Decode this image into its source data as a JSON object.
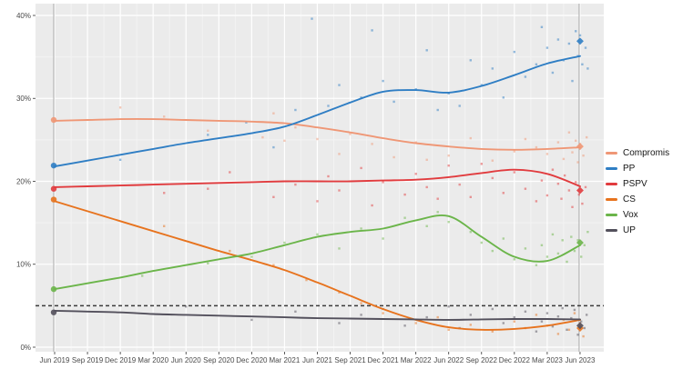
{
  "figure": {
    "background": "#ffffff",
    "plot_background": "#ebebeb",
    "grid_major_color": "#ffffff",
    "grid_minor_color": "#f3f3f3",
    "axis_text_color": "#4a4a4a",
    "election_line_color": "#a8a8a8",
    "threshold_color": "#3b3b3b"
  },
  "chart_data": {
    "type": "line",
    "title": "",
    "x_axis": {
      "tick_labels": [
        "Jun 2019",
        "Sep 2019",
        "Dec 2019",
        "Mar 2020",
        "Jun 2020",
        "Sep 2020",
        "Dec 2020",
        "Mar 2021",
        "Jun 2021",
        "Sep 2021",
        "Dec 2021",
        "Mar 2022",
        "Jun 2022",
        "Sep 2022",
        "Dec 2022",
        "Mar 2023",
        "Jun 2023"
      ],
      "months_span": 48
    },
    "y_axis": {
      "tick_labels": [
        "0%",
        "10%",
        "20%",
        "30%",
        "40%"
      ],
      "tick_values": [
        0,
        10,
        20,
        30,
        40
      ],
      "min": 0,
      "max": 40,
      "unit": "%"
    },
    "threshold": {
      "value": 5,
      "style": "dashed"
    },
    "election_lines_months": [
      0,
      48
    ],
    "legend_position": "right",
    "series": [
      {
        "name": "Compromis",
        "color": "#ef9776",
        "trend_quarterly": [
          27.3,
          27.4,
          27.5,
          27.5,
          27.4,
          27.3,
          27.2,
          27.0,
          26.5,
          25.9,
          25.2,
          24.6,
          24.2,
          23.9,
          23.8,
          23.9,
          24.1
        ],
        "result_2019": 27.4,
        "result_2023": 24.2,
        "polls": [
          [
            6,
            28.9
          ],
          [
            10,
            27.8
          ],
          [
            14,
            26.1
          ],
          [
            19,
            25.3
          ],
          [
            20,
            28.2
          ],
          [
            21,
            24.9
          ],
          [
            22,
            26.5
          ],
          [
            24,
            25.1
          ],
          [
            26,
            23.3
          ],
          [
            27,
            25.7
          ],
          [
            29,
            24.5
          ],
          [
            31,
            22.9
          ],
          [
            33,
            24.7
          ],
          [
            34,
            22.6
          ],
          [
            36,
            23.1
          ],
          [
            38,
            25.2
          ],
          [
            40,
            22.5
          ],
          [
            42,
            23.6
          ],
          [
            43,
            25.1
          ],
          [
            44,
            24.1
          ],
          [
            45,
            23.3
          ],
          [
            46,
            24.7
          ],
          [
            46.5,
            22.7
          ],
          [
            47,
            25.9
          ],
          [
            47.3,
            23.5
          ],
          [
            47.6,
            24.9
          ],
          [
            47.8,
            22.3
          ],
          [
            48,
            24.5
          ],
          [
            48.3,
            23.1
          ],
          [
            48.6,
            25.3
          ]
        ]
      },
      {
        "name": "PP",
        "color": "#2f7ec4",
        "trend_quarterly": [
          21.8,
          22.5,
          23.2,
          23.9,
          24.6,
          25.2,
          25.8,
          26.6,
          28.0,
          29.5,
          30.8,
          31.0,
          30.7,
          31.5,
          32.8,
          34.2,
          35.1
        ],
        "result_2019": 21.9,
        "result_2023": 36.9,
        "polls": [
          [
            6,
            22.6
          ],
          [
            14,
            25.6
          ],
          [
            17.5,
            27.1
          ],
          [
            20,
            24.1
          ],
          [
            22,
            28.6
          ],
          [
            23.5,
            39.6
          ],
          [
            25,
            29.1
          ],
          [
            26,
            31.6
          ],
          [
            28,
            30.1
          ],
          [
            29,
            38.2
          ],
          [
            30,
            32.1
          ],
          [
            31,
            29.6
          ],
          [
            33,
            31.1
          ],
          [
            34,
            35.8
          ],
          [
            35,
            28.6
          ],
          [
            36,
            30.6
          ],
          [
            37,
            29.1
          ],
          [
            38,
            34.6
          ],
          [
            39,
            31.6
          ],
          [
            40,
            33.6
          ],
          [
            41,
            30.1
          ],
          [
            42,
            35.6
          ],
          [
            43,
            32.6
          ],
          [
            44,
            34.1
          ],
          [
            44.5,
            38.6
          ],
          [
            45,
            36.1
          ],
          [
            45.5,
            33.1
          ],
          [
            46,
            37.1
          ],
          [
            46.5,
            34.6
          ],
          [
            47,
            36.6
          ],
          [
            47.3,
            32.1
          ],
          [
            47.6,
            38.1
          ],
          [
            47.8,
            35.1
          ],
          [
            48,
            37.6
          ],
          [
            48.2,
            34.1
          ],
          [
            48.5,
            36.1
          ],
          [
            48.7,
            33.6
          ]
        ]
      },
      {
        "name": "PSPV",
        "color": "#e13b3e",
        "trend_quarterly": [
          19.3,
          19.4,
          19.5,
          19.6,
          19.7,
          19.8,
          19.9,
          20.0,
          20.0,
          20.0,
          20.1,
          20.2,
          20.5,
          21.0,
          21.4,
          20.9,
          19.4
        ],
        "result_2019": 19.1,
        "result_2023": 18.9,
        "polls": [
          [
            10,
            18.6
          ],
          [
            14,
            19.1
          ],
          [
            16,
            21.1
          ],
          [
            20,
            18.1
          ],
          [
            22,
            19.6
          ],
          [
            24,
            17.6
          ],
          [
            25,
            20.6
          ],
          [
            26,
            18.9
          ],
          [
            28,
            21.6
          ],
          [
            29,
            17.1
          ],
          [
            30,
            19.9
          ],
          [
            32,
            18.4
          ],
          [
            33,
            20.9
          ],
          [
            34,
            19.3
          ],
          [
            35,
            17.9
          ],
          [
            36,
            21.9
          ],
          [
            37,
            19.6
          ],
          [
            38,
            18.1
          ],
          [
            39,
            22.1
          ],
          [
            40,
            20.4
          ],
          [
            41,
            18.6
          ],
          [
            42,
            21.1
          ],
          [
            43,
            19.1
          ],
          [
            44,
            17.6
          ],
          [
            44.5,
            20.1
          ],
          [
            45,
            18.3
          ],
          [
            45.5,
            21.4
          ],
          [
            46,
            19.7
          ],
          [
            46.3,
            17.9
          ],
          [
            46.6,
            20.7
          ],
          [
            47,
            18.9
          ],
          [
            47.3,
            16.9
          ],
          [
            47.6,
            19.9
          ],
          [
            47.9,
            18.4
          ],
          [
            48.2,
            17.3
          ],
          [
            48.5,
            19.3
          ]
        ]
      },
      {
        "name": "CS",
        "color": "#e7731e",
        "trend_quarterly": [
          17.6,
          16.4,
          15.2,
          14.0,
          12.8,
          11.6,
          10.5,
          9.3,
          7.8,
          6.2,
          4.6,
          3.3,
          2.4,
          2.1,
          2.2,
          2.6,
          3.3
        ],
        "result_2019": 17.8,
        "result_2023": 2.3,
        "polls": [
          [
            10,
            14.6
          ],
          [
            16,
            11.6
          ],
          [
            20,
            9.9
          ],
          [
            23,
            8.1
          ],
          [
            26,
            6.6
          ],
          [
            28,
            5.3
          ],
          [
            30,
            4.1
          ],
          [
            33,
            2.9
          ],
          [
            35,
            3.6
          ],
          [
            36,
            2.1
          ],
          [
            38,
            2.7
          ],
          [
            40,
            1.9
          ],
          [
            42,
            3.1
          ],
          [
            43,
            2.3
          ],
          [
            44,
            3.9
          ],
          [
            45,
            2.6
          ],
          [
            46,
            1.6
          ],
          [
            46.5,
            3.3
          ],
          [
            47,
            2.1
          ],
          [
            47.5,
            4.1
          ],
          [
            48,
            2.9
          ],
          [
            48.3,
            1.3
          ]
        ]
      },
      {
        "name": "Vox",
        "color": "#6bb54a",
        "trend_quarterly": [
          7.0,
          7.7,
          8.4,
          9.2,
          9.9,
          10.6,
          11.3,
          12.3,
          13.3,
          13.9,
          14.3,
          15.3,
          15.8,
          13.3,
          10.9,
          10.4,
          12.3
        ],
        "result_2019": 7.0,
        "result_2023": 12.6,
        "polls": [
          [
            8,
            8.6
          ],
          [
            14,
            10.1
          ],
          [
            18,
            10.9
          ],
          [
            21,
            12.6
          ],
          [
            24,
            13.6
          ],
          [
            26,
            11.9
          ],
          [
            28,
            14.3
          ],
          [
            30,
            13.1
          ],
          [
            32,
            15.6
          ],
          [
            34,
            14.6
          ],
          [
            35,
            16.3
          ],
          [
            36,
            15.1
          ],
          [
            38,
            13.9
          ],
          [
            39,
            12.6
          ],
          [
            40,
            11.6
          ],
          [
            41,
            13.1
          ],
          [
            42,
            10.6
          ],
          [
            43,
            11.9
          ],
          [
            44,
            9.9
          ],
          [
            44.5,
            12.3
          ],
          [
            45,
            10.9
          ],
          [
            45.5,
            13.6
          ],
          [
            46,
            11.3
          ],
          [
            46.4,
            12.9
          ],
          [
            46.8,
            10.3
          ],
          [
            47.2,
            13.3
          ],
          [
            47.5,
            11.6
          ],
          [
            47.8,
            12.9
          ],
          [
            48.1,
            10.9
          ],
          [
            48.4,
            12.3
          ],
          [
            48.7,
            13.9
          ]
        ]
      },
      {
        "name": "UP",
        "color": "#53505c",
        "trend_quarterly": [
          4.4,
          4.3,
          4.2,
          4.0,
          3.9,
          3.8,
          3.7,
          3.6,
          3.5,
          3.45,
          3.4,
          3.35,
          3.3,
          3.35,
          3.4,
          3.4,
          3.35
        ],
        "result_2019": 4.2,
        "result_2023": 2.6,
        "polls": [
          [
            12,
            4.9
          ],
          [
            18,
            3.3
          ],
          [
            22,
            4.3
          ],
          [
            26,
            2.9
          ],
          [
            28,
            3.9
          ],
          [
            30,
            4.6
          ],
          [
            32,
            2.6
          ],
          [
            34,
            3.6
          ],
          [
            36,
            4.9
          ],
          [
            37,
            2.3
          ],
          [
            38,
            3.9
          ],
          [
            40,
            4.6
          ],
          [
            41,
            2.9
          ],
          [
            42,
            3.6
          ],
          [
            43,
            4.3
          ],
          [
            44,
            1.9
          ],
          [
            44.5,
            3.1
          ],
          [
            45,
            4.1
          ],
          [
            45.5,
            2.5
          ],
          [
            46,
            3.7
          ],
          [
            46.4,
            4.7
          ],
          [
            46.8,
            2.1
          ],
          [
            47.2,
            3.5
          ],
          [
            47.5,
            4.5
          ],
          [
            47.8,
            1.5
          ],
          [
            48.1,
            3.1
          ],
          [
            48.4,
            2.3
          ],
          [
            48.6,
            3.9
          ]
        ]
      }
    ]
  }
}
